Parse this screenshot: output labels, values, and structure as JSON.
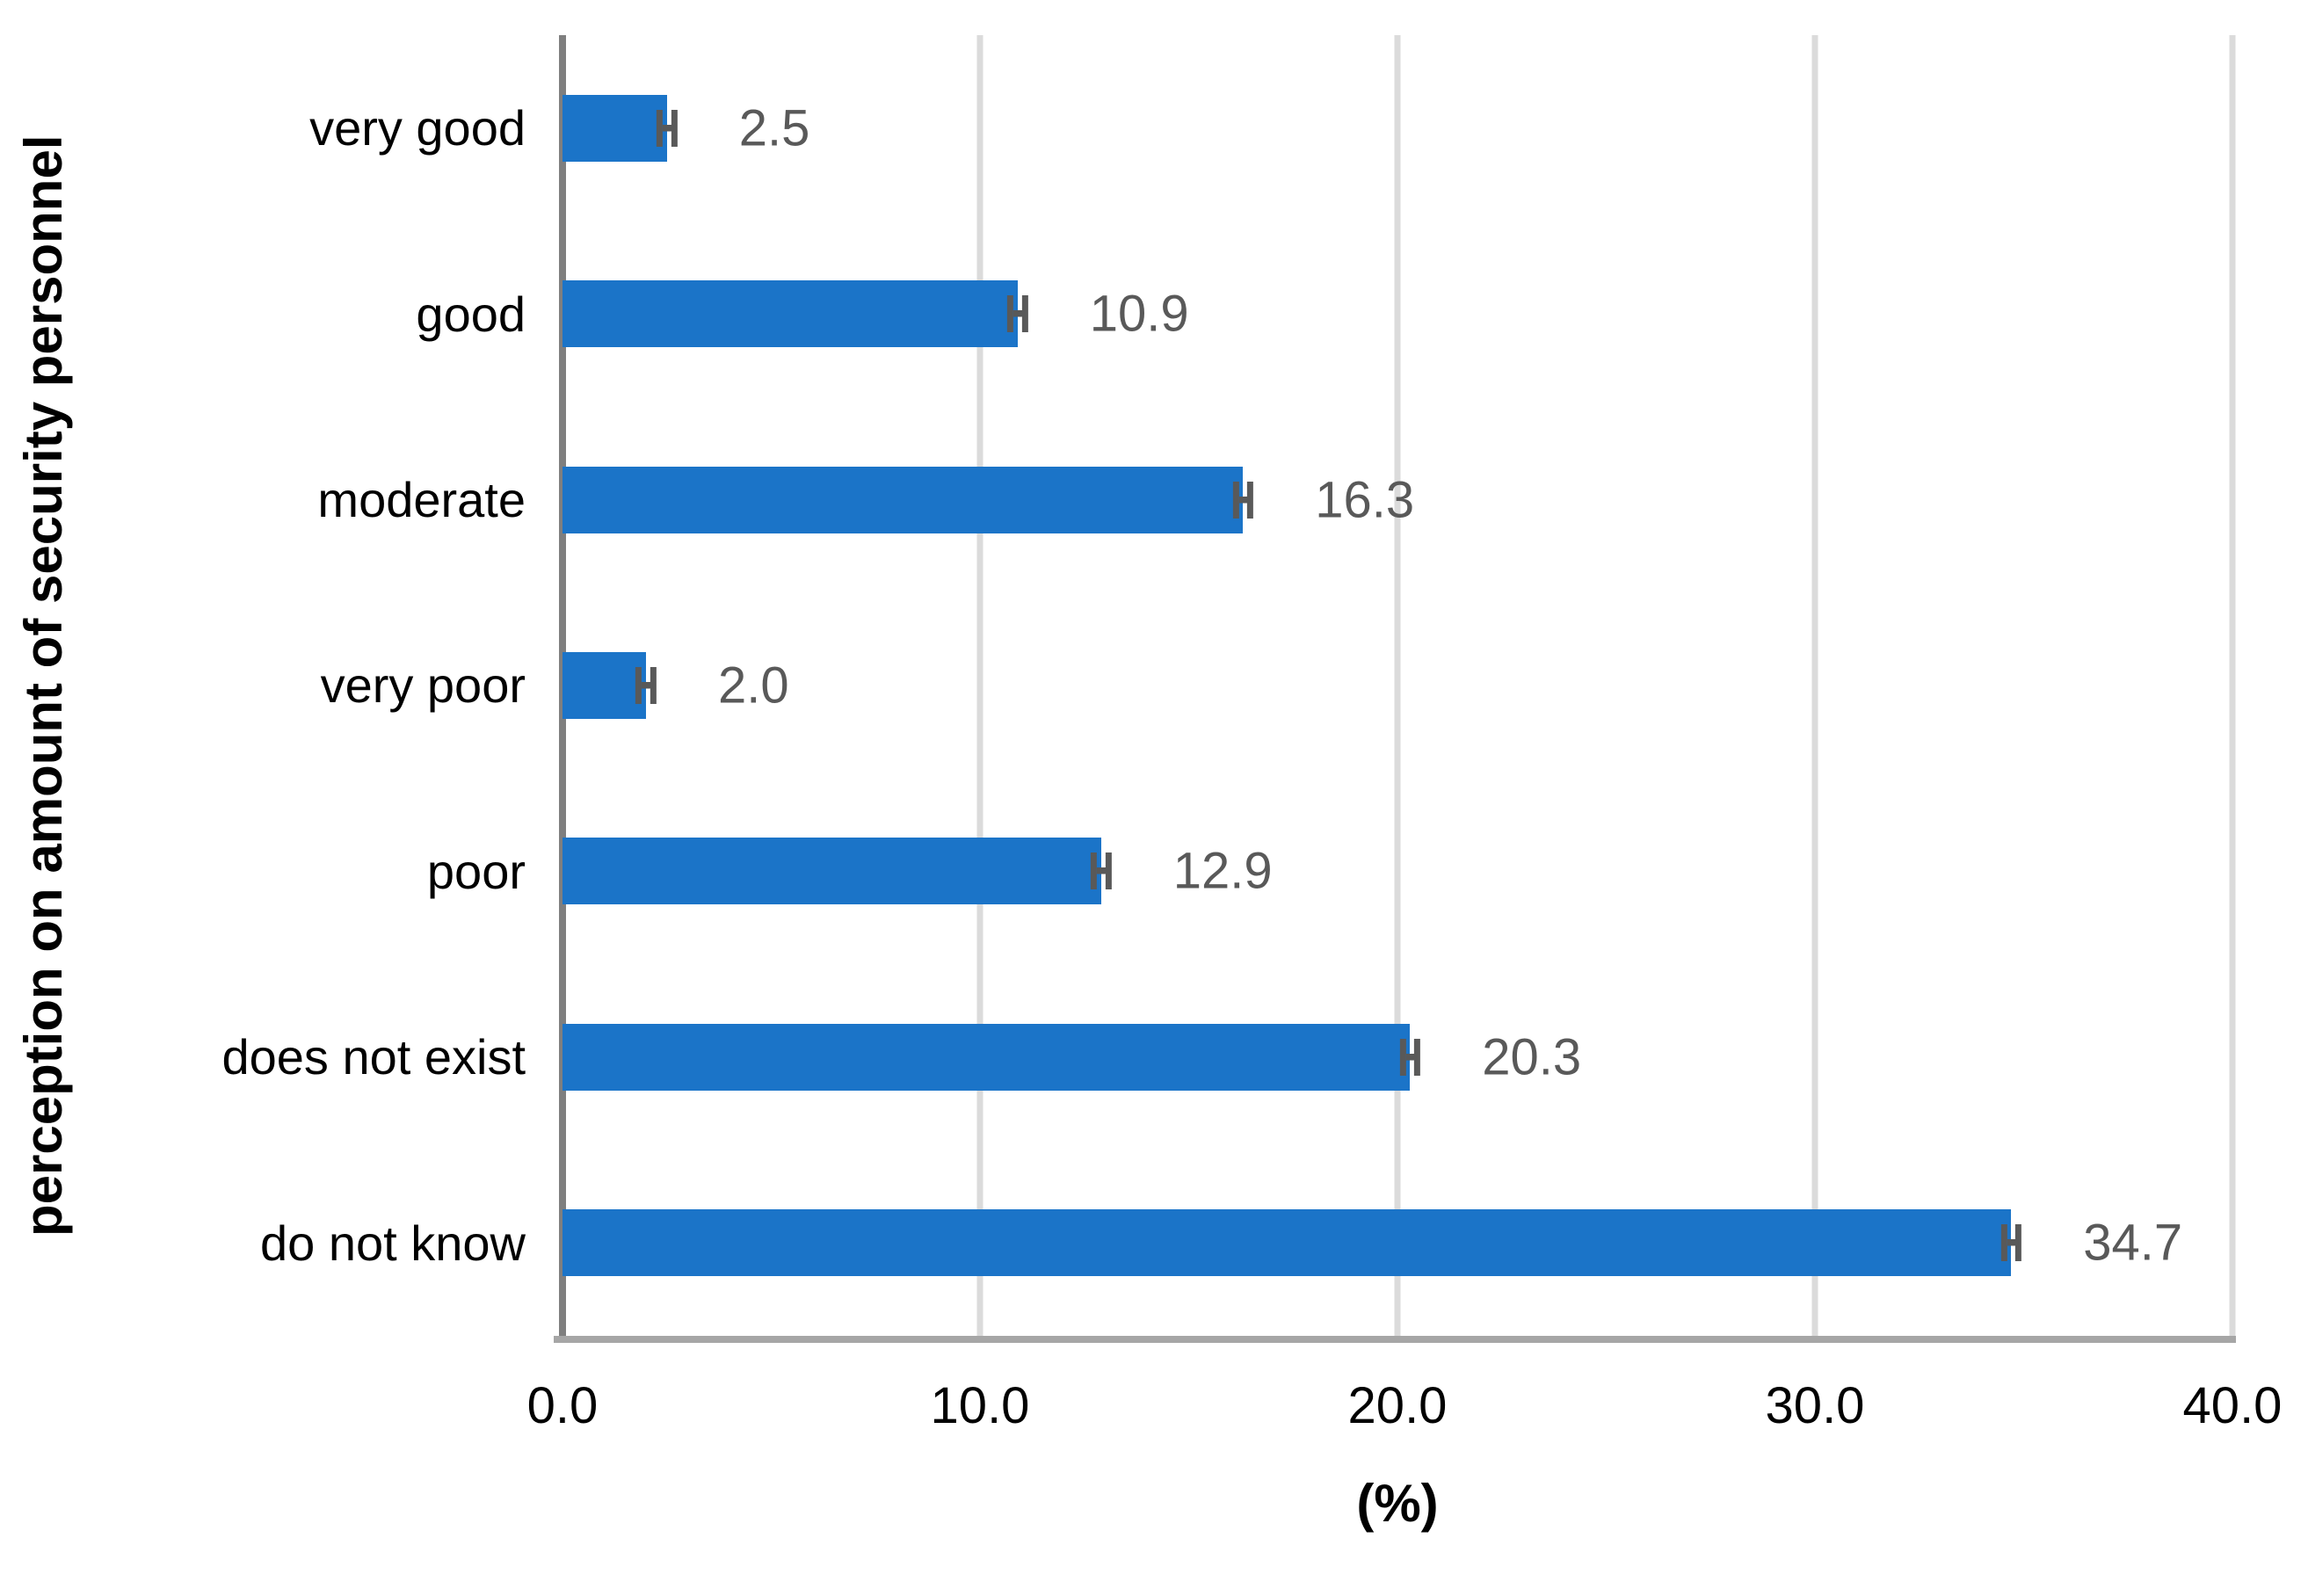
{
  "chart_data": {
    "type": "bar",
    "orientation": "horizontal",
    "title": "",
    "ylabel": "perception on amount of security personnel",
    "xlabel": "(%)",
    "categories": [
      "very good",
      "good",
      "moderate",
      "very poor",
      "poor",
      "does not exist",
      "do not know"
    ],
    "values": [
      2.5,
      10.9,
      16.3,
      2.0,
      12.9,
      20.3,
      34.7
    ],
    "value_labels": [
      "2.5",
      "10.9",
      "16.3",
      "2.0",
      "12.9",
      "20.3",
      "34.7"
    ],
    "error_halfwidths": [
      0.25,
      0.25,
      0.25,
      0.25,
      0.25,
      0.25,
      0.25
    ],
    "xlim": [
      0,
      40
    ],
    "xticks": [
      0,
      10,
      20,
      30,
      40
    ],
    "xtick_labels": [
      "0.0",
      "10.0",
      "20.0",
      "30.0",
      "40.0"
    ],
    "grid": "vertical-gridlines-on",
    "legend": "none",
    "colors": {
      "bar": "#1B74C8",
      "gridline": "#DBDBDB",
      "y_axis_line": "#7F7F7F",
      "x_axis_line": "#A6A6A6",
      "data_label": "#595959",
      "error_bar": "#595959",
      "text": "#000000",
      "background": "#FFFFFF"
    }
  }
}
